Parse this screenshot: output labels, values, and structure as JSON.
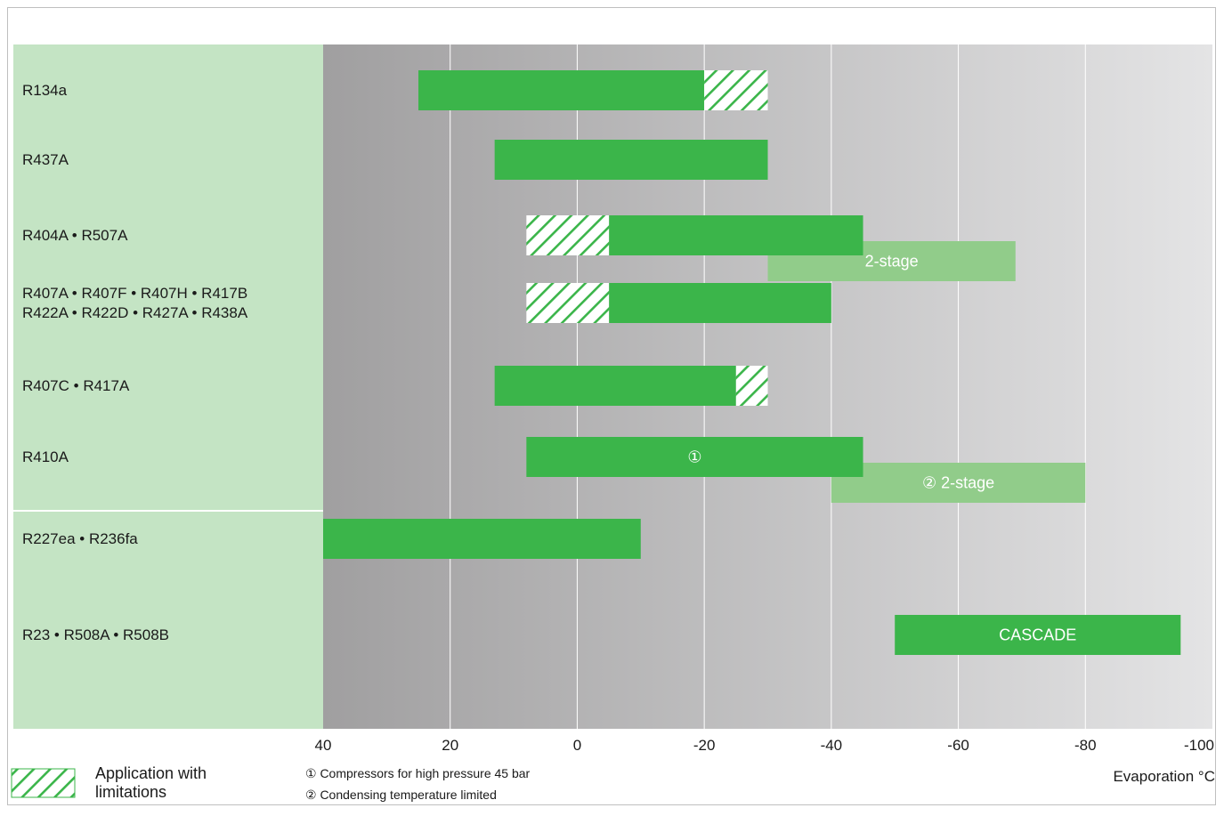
{
  "chart_data": {
    "type": "bar",
    "orientation": "horizontal-range",
    "xlim": [
      40,
      -100
    ],
    "x_ticks": [
      40,
      20,
      0,
      -20,
      -40,
      -60,
      -80,
      -100
    ],
    "xlabel": "Evaporation °C",
    "categories": [
      {
        "lines": [
          "R134a"
        ]
      },
      {
        "lines": [
          "R437A"
        ]
      },
      {
        "lines": [
          "R404A • R507A"
        ]
      },
      {
        "lines": [
          "R407A • R407F  • R407H • R417B",
          "R422A • R422D  • R427A • R438A"
        ]
      },
      {
        "lines": [
          "R407C • R417A"
        ]
      },
      {
        "lines": [
          "R410A"
        ]
      },
      {
        "lines": [
          "R227ea • R236fa"
        ]
      },
      {
        "lines": [
          "R23 • R508A • R508B"
        ]
      }
    ],
    "ranges": [
      {
        "row": 0,
        "kind": "full",
        "from": 25,
        "to": -20,
        "label": ""
      },
      {
        "row": 0,
        "kind": "limited",
        "from": -20,
        "to": -30,
        "label": ""
      },
      {
        "row": 1,
        "kind": "full",
        "from": 13,
        "to": -30,
        "label": ""
      },
      {
        "row": 2,
        "kind": "two-stage",
        "from": -30,
        "to": -69,
        "label": "2-stage"
      },
      {
        "row": 2,
        "kind": "limited",
        "from": 8,
        "to": -5,
        "label": ""
      },
      {
        "row": 2,
        "kind": "full",
        "from": -5,
        "to": -45,
        "label": ""
      },
      {
        "row": 3,
        "kind": "limited",
        "from": 8,
        "to": -5,
        "label": ""
      },
      {
        "row": 3,
        "kind": "full",
        "from": -5,
        "to": -40,
        "label": ""
      },
      {
        "row": 4,
        "kind": "full",
        "from": 13,
        "to": -25,
        "label": ""
      },
      {
        "row": 4,
        "kind": "limited",
        "from": -25,
        "to": -30,
        "label": ""
      },
      {
        "row": 5,
        "kind": "two-stage",
        "from": -40,
        "to": -80,
        "label": "② 2-stage"
      },
      {
        "row": 5,
        "kind": "full",
        "from": 8,
        "to": -45,
        "label": "①"
      },
      {
        "row": 6,
        "kind": "full",
        "from": 40,
        "to": -10,
        "label": ""
      },
      {
        "row": 7,
        "kind": "full",
        "from": -50,
        "to": -95,
        "label": "CASCADE"
      }
    ],
    "legend": {
      "limited_label_lines": [
        "Application with",
        "limitations"
      ]
    },
    "notes": [
      "① Compressors for high pressure 45 bar",
      "② Condensing temperature limited"
    ],
    "colors": {
      "full": "#3bb54a",
      "two_stage": "#91cc8a",
      "hatch": "#3bb54a",
      "label_panel": "#c4e4c4",
      "plot_dark": "#a09fa0",
      "plot_light": "#e4e4e5"
    }
  }
}
